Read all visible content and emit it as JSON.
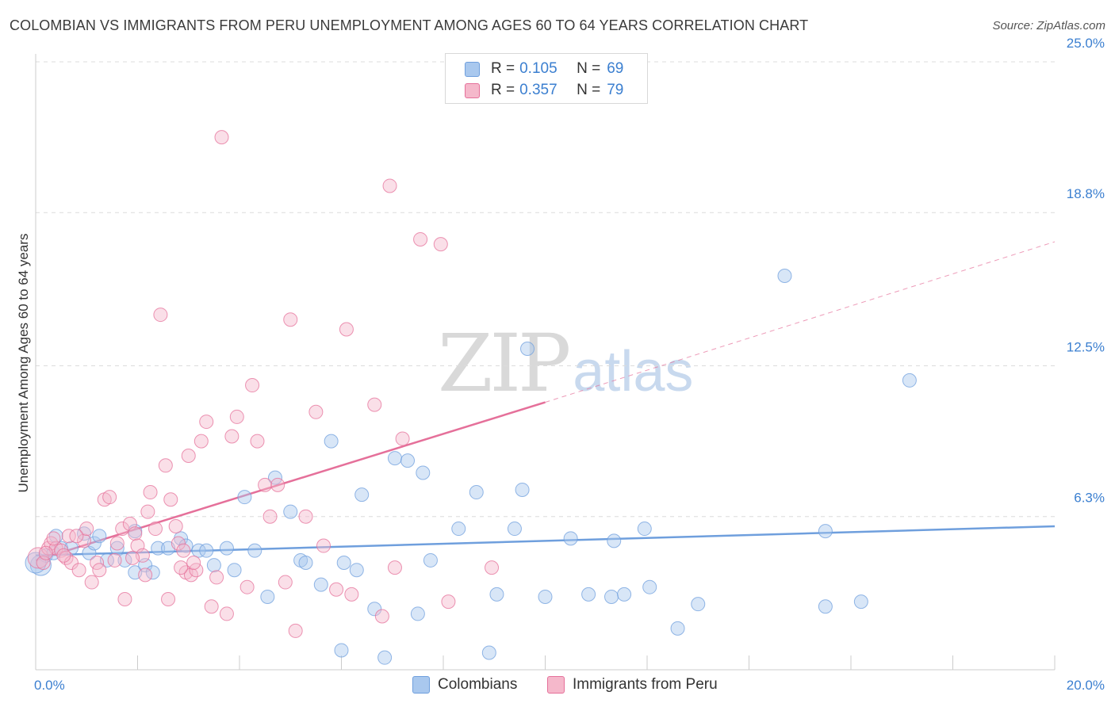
{
  "title": "COLOMBIAN VS IMMIGRANTS FROM PERU UNEMPLOYMENT AMONG AGES 60 TO 64 YEARS CORRELATION CHART",
  "source": "Source: ZipAtlas.com",
  "watermark": {
    "zip": "ZIP",
    "atlas": "atlas"
  },
  "legend_top": [
    {
      "r_label": "R =",
      "r_value": "0.105",
      "n_label": "N =",
      "n_value": "69",
      "color": "#a9c8ee"
    },
    {
      "r_label": "R =",
      "r_value": "0.357",
      "n_label": "N =",
      "n_value": "79",
      "color": "#f5b8cb"
    }
  ],
  "legend_bottom": [
    {
      "label": "Colombians",
      "color": "#a9c8ee"
    },
    {
      "label": "Immigrants from Peru",
      "color": "#f5b8cb"
    }
  ],
  "chart_data": {
    "type": "scatter",
    "title": "COLOMBIAN VS IMMIGRANTS FROM PERU UNEMPLOYMENT AMONG AGES 60 TO 64 YEARS CORRELATION CHART",
    "xlabel": "",
    "ylabel": "Unemployment Among Ages 60 to 64 years",
    "xlim": [
      0,
      20
    ],
    "ylim": [
      0,
      25.0
    ],
    "x_tick_labels": [
      "0.0%",
      "20.0%"
    ],
    "y_ticks": [
      6.3,
      12.5,
      18.8,
      25.0
    ],
    "y_tick_labels": [
      "6.3%",
      "12.5%",
      "18.8%",
      "25.0%"
    ],
    "grid": true,
    "series": [
      {
        "name": "Colombians",
        "color": "#6f9fdd",
        "fill": "#a9c8ee",
        "trend": {
          "x0": 0,
          "y0": 4.7,
          "x1": 20,
          "y1": 5.9
        },
        "points": [
          [
            0.1,
            4.3
          ],
          [
            0.2,
            4.7
          ],
          [
            0.35,
            4.8
          ],
          [
            0.5,
            5.0
          ],
          [
            0.7,
            5.0
          ],
          [
            0.95,
            5.6
          ],
          [
            1.05,
            4.8
          ],
          [
            1.15,
            5.2
          ],
          [
            1.25,
            5.5
          ],
          [
            1.4,
            4.5
          ],
          [
            1.6,
            5.0
          ],
          [
            1.75,
            4.5
          ],
          [
            1.95,
            5.7
          ],
          [
            1.95,
            4.0
          ],
          [
            2.15,
            4.3
          ],
          [
            2.3,
            4.0
          ],
          [
            2.4,
            5.0
          ],
          [
            2.6,
            5.0
          ],
          [
            2.85,
            5.4
          ],
          [
            2.95,
            5.1
          ],
          [
            3.2,
            4.9
          ],
          [
            3.35,
            4.9
          ],
          [
            3.5,
            4.3
          ],
          [
            3.75,
            5.0
          ],
          [
            3.9,
            4.1
          ],
          [
            4.1,
            7.1
          ],
          [
            4.3,
            4.9
          ],
          [
            4.55,
            3.0
          ],
          [
            4.7,
            7.9
          ],
          [
            5.0,
            6.5
          ],
          [
            5.2,
            4.5
          ],
          [
            5.3,
            4.4
          ],
          [
            5.6,
            3.5
          ],
          [
            5.8,
            9.4
          ],
          [
            6.0,
            0.8
          ],
          [
            6.05,
            4.4
          ],
          [
            6.3,
            4.1
          ],
          [
            6.4,
            7.2
          ],
          [
            6.65,
            2.5
          ],
          [
            6.85,
            0.5
          ],
          [
            7.05,
            8.7
          ],
          [
            7.3,
            8.6
          ],
          [
            7.5,
            2.3
          ],
          [
            7.6,
            8.1
          ],
          [
            7.75,
            4.5
          ],
          [
            8.3,
            5.8
          ],
          [
            8.65,
            7.3
          ],
          [
            8.9,
            0.7
          ],
          [
            9.05,
            3.1
          ],
          [
            9.4,
            5.8
          ],
          [
            9.55,
            7.4
          ],
          [
            9.65,
            13.2
          ],
          [
            10.0,
            3.0
          ],
          [
            10.5,
            5.4
          ],
          [
            10.85,
            3.1
          ],
          [
            11.3,
            3.0
          ],
          [
            11.35,
            5.3
          ],
          [
            11.55,
            3.1
          ],
          [
            11.95,
            5.8
          ],
          [
            12.05,
            3.4
          ],
          [
            12.6,
            1.7
          ],
          [
            13.0,
            2.7
          ],
          [
            14.7,
            16.2
          ],
          [
            15.5,
            2.6
          ],
          [
            15.5,
            5.7
          ],
          [
            16.2,
            2.8
          ],
          [
            17.15,
            11.9
          ],
          [
            0.4,
            5.5
          ],
          [
            0.0,
            4.4
          ]
        ]
      },
      {
        "name": "Immigrants from Peru",
        "color": "#e5709a",
        "fill": "#f5b8cb",
        "trend": {
          "x0": 0,
          "y0": 4.5,
          "x1": 10,
          "y1": 11.0,
          "dash_x1": 20,
          "dash_y1": 17.6
        },
        "points": [
          [
            0.05,
            4.6
          ],
          [
            0.15,
            4.4
          ],
          [
            0.25,
            5.0
          ],
          [
            0.3,
            5.2
          ],
          [
            0.4,
            5.0
          ],
          [
            0.5,
            4.9
          ],
          [
            0.6,
            4.6
          ],
          [
            0.65,
            5.5
          ],
          [
            0.7,
            4.4
          ],
          [
            0.85,
            4.1
          ],
          [
            0.95,
            5.3
          ],
          [
            1.0,
            5.8
          ],
          [
            1.1,
            3.6
          ],
          [
            1.2,
            4.4
          ],
          [
            1.25,
            4.1
          ],
          [
            1.35,
            7.0
          ],
          [
            1.45,
            7.1
          ],
          [
            1.55,
            4.5
          ],
          [
            1.7,
            5.8
          ],
          [
            1.75,
            2.9
          ],
          [
            1.85,
            6.0
          ],
          [
            1.95,
            5.6
          ],
          [
            2.0,
            5.1
          ],
          [
            2.1,
            4.7
          ],
          [
            2.15,
            3.9
          ],
          [
            2.2,
            6.5
          ],
          [
            2.25,
            7.3
          ],
          [
            2.35,
            5.8
          ],
          [
            2.45,
            14.6
          ],
          [
            2.55,
            8.4
          ],
          [
            2.6,
            2.9
          ],
          [
            2.65,
            7.0
          ],
          [
            2.75,
            5.9
          ],
          [
            2.8,
            5.2
          ],
          [
            2.9,
            4.9
          ],
          [
            2.95,
            4.0
          ],
          [
            3.0,
            8.8
          ],
          [
            3.05,
            3.9
          ],
          [
            3.15,
            4.1
          ],
          [
            3.25,
            9.4
          ],
          [
            3.35,
            10.2
          ],
          [
            3.45,
            2.6
          ],
          [
            3.55,
            3.8
          ],
          [
            3.65,
            21.9
          ],
          [
            3.75,
            2.3
          ],
          [
            3.85,
            9.6
          ],
          [
            3.95,
            10.4
          ],
          [
            4.15,
            3.4
          ],
          [
            4.25,
            11.7
          ],
          [
            4.35,
            9.4
          ],
          [
            4.5,
            7.6
          ],
          [
            4.6,
            6.3
          ],
          [
            4.75,
            7.6
          ],
          [
            4.9,
            3.6
          ],
          [
            5.0,
            14.4
          ],
          [
            5.1,
            1.6
          ],
          [
            5.3,
            6.3
          ],
          [
            5.5,
            10.6
          ],
          [
            5.65,
            5.1
          ],
          [
            5.9,
            3.3
          ],
          [
            6.1,
            14.0
          ],
          [
            6.2,
            3.1
          ],
          [
            6.65,
            10.9
          ],
          [
            6.8,
            2.2
          ],
          [
            6.95,
            19.9
          ],
          [
            7.05,
            4.2
          ],
          [
            7.2,
            9.5
          ],
          [
            7.55,
            17.7
          ],
          [
            7.95,
            17.5
          ],
          [
            8.1,
            2.8
          ],
          [
            8.95,
            4.2
          ],
          [
            0.2,
            4.8
          ],
          [
            0.35,
            5.4
          ],
          [
            0.55,
            4.7
          ],
          [
            0.8,
            5.5
          ],
          [
            1.6,
            5.2
          ],
          [
            1.9,
            4.6
          ],
          [
            2.85,
            4.2
          ],
          [
            3.1,
            4.4
          ]
        ]
      }
    ]
  }
}
